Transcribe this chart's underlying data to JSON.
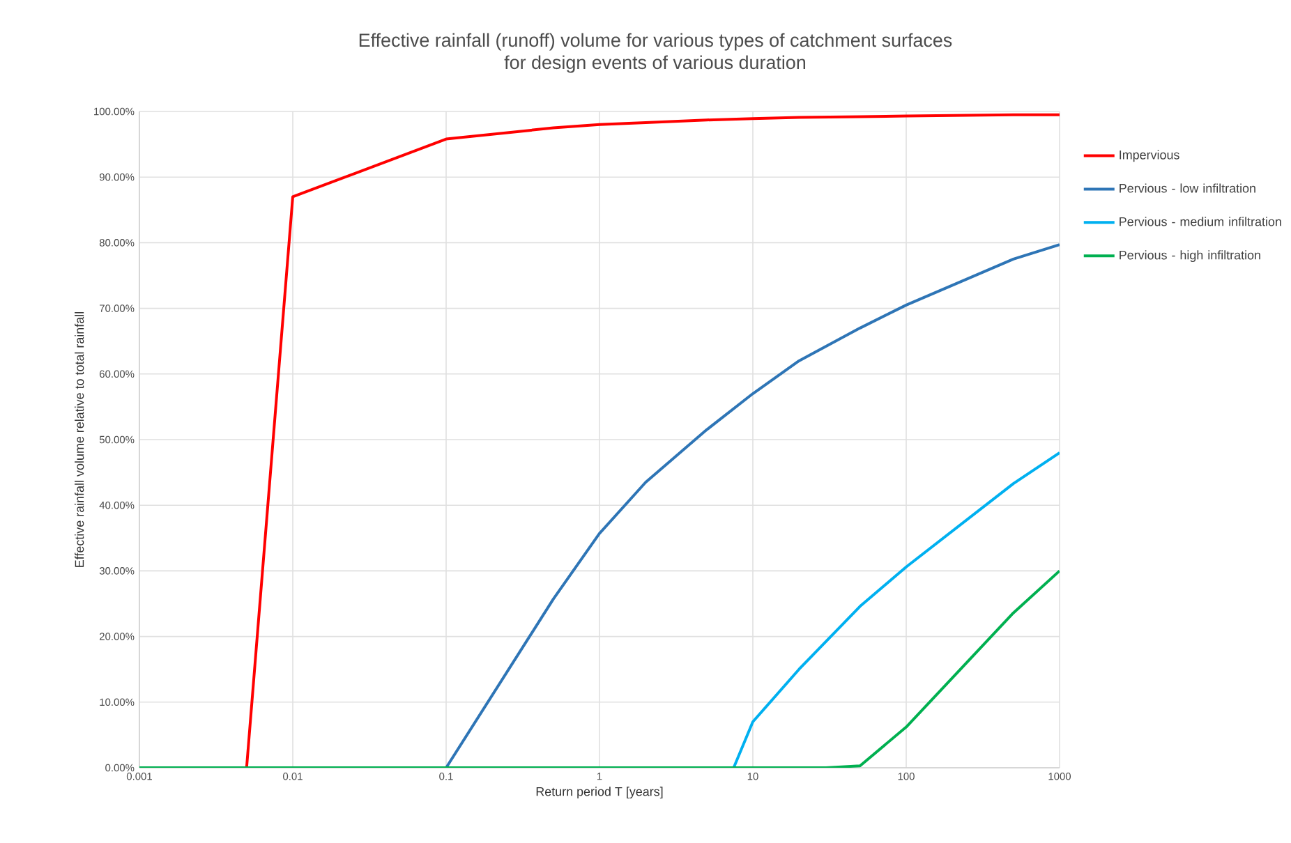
{
  "chart_data": {
    "type": "line",
    "title": "Effective rainfall (runoff) volume  for various types of catchment surfaces",
    "subtitle": "for design events of various duration",
    "xlabel": "Return period T [years]",
    "ylabel": "Effective rainfall volume relative to total rainfall",
    "log": "x",
    "grid": true,
    "legend": "right",
    "line_style": "solid",
    "marker": "none",
    "xlim": [
      0.001,
      1000
    ],
    "xticks": [
      0.001,
      0.01,
      0.1,
      1,
      10,
      100,
      1000
    ],
    "ylim": [
      0,
      100
    ],
    "yticks": [
      {
        "value": 0,
        "label": "0.00%"
      },
      {
        "value": 10,
        "label": "10.00%"
      },
      {
        "value": 20,
        "label": "20.00%"
      },
      {
        "value": 30,
        "label": "30.00%"
      },
      {
        "value": 40,
        "label": "40.00%"
      },
      {
        "value": 50,
        "label": "50.00%"
      },
      {
        "value": 60,
        "label": "60.00%"
      },
      {
        "value": 70,
        "label": "70.00%"
      },
      {
        "value": 80,
        "label": "80.00%"
      },
      {
        "value": 90,
        "label": "90.00%"
      },
      {
        "value": 100,
        "label": "100.00%"
      }
    ],
    "series": [
      {
        "name": "Impervious",
        "color": "#ff0000",
        "x": [
          0.001,
          0.005,
          0.01,
          0.1,
          0.5,
          1,
          2,
          5,
          10,
          20,
          50,
          100,
          500,
          1000
        ],
        "values": [
          0,
          0,
          87,
          95.8,
          97.5,
          98,
          98.3,
          98.7,
          98.9,
          99.1,
          99.2,
          99.3,
          99.5,
          99.5
        ]
      },
      {
        "name": "Pervious - low infiltration",
        "color": "#2e75b6",
        "x": [
          0.001,
          0.1,
          0.5,
          1,
          2,
          5,
          10,
          20,
          50,
          100,
          500,
          1000
        ],
        "values": [
          0,
          0,
          25.7,
          35.7,
          43.5,
          51.5,
          57,
          62,
          67,
          70.5,
          77.5,
          79.7
        ]
      },
      {
        "name": "Pervious - medium infiltration",
        "color": "#00b0f0",
        "x": [
          7.5,
          10,
          20,
          50,
          100,
          500,
          1000
        ],
        "values": [
          0,
          7,
          15,
          24.6,
          30.6,
          43.3,
          48
        ]
      },
      {
        "name": "Pervious - high infiltration",
        "color": "#00b050",
        "x": [
          0.001,
          30,
          50,
          100,
          500,
          1000
        ],
        "values": [
          0,
          0,
          0.3,
          6.2,
          23.6,
          30
        ]
      }
    ]
  }
}
